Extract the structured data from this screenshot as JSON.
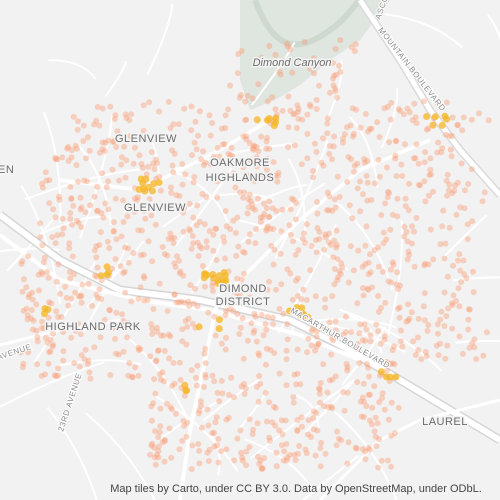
{
  "map": {
    "labels": {
      "dimond_canyon": "Dimond Canyon",
      "glenview_1": "GLENVIEW",
      "glenview_2": "GLENVIEW",
      "oakmore_1": "OAKMORE",
      "oakmore_2": "HIGHLANDS",
      "dimond_1": "DIMOND",
      "dimond_2": "DISTRICT",
      "highland_park": "HIGHLAND PARK",
      "laurel": "LAUREL",
      "mountain_blvd": "MOUNTAIN BOULEVARD",
      "ascot": "ASCO",
      "macarthur_blvd": "MACARTHUR BOULEVARD",
      "avenue_23rd": "23RD AVENUE",
      "avenue_left": "AVENUE",
      "left_partial": "EN"
    },
    "attribution": "Map tiles by Carto, under CC BY 3.0. Data by OpenStreetMap, under ODbL."
  }
}
